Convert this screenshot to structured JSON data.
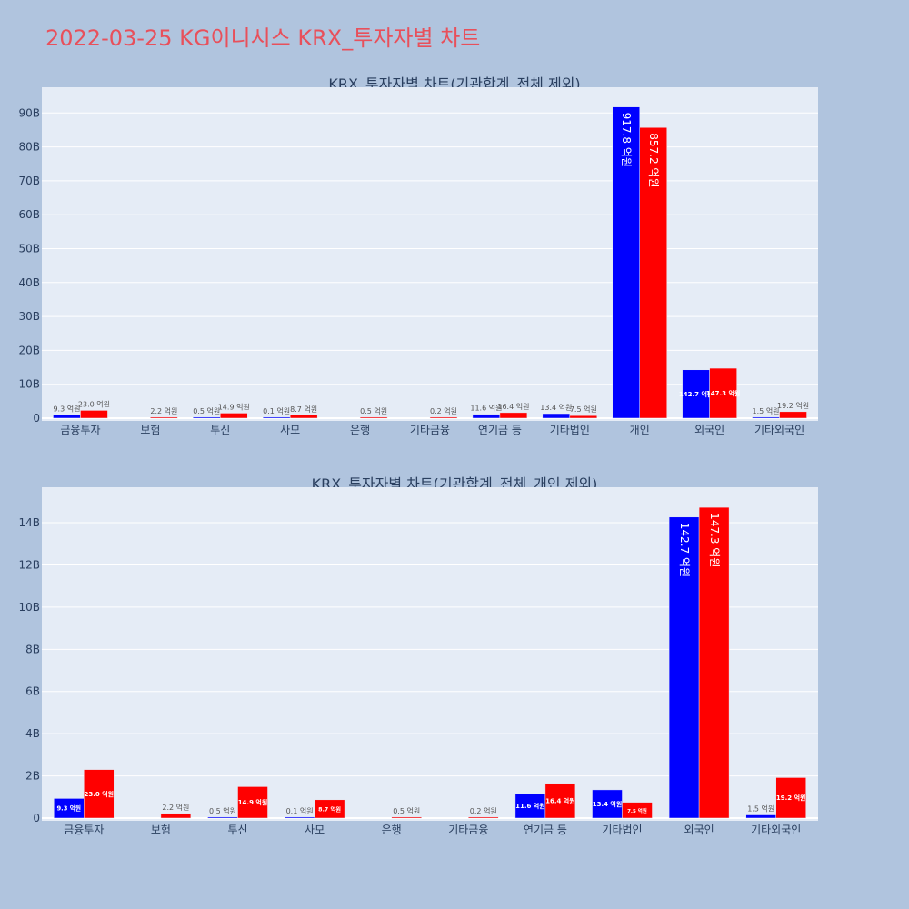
{
  "page": {
    "title": "2022-03-25 KG이니시스 KRX_투자자별 차트"
  },
  "colors": {
    "buy": "#0000ff",
    "sell": "#ff0000",
    "plot_bg": "#e5ecf6",
    "page_bg": "#b0c4de",
    "title": "#e8505b"
  },
  "chart_data": [
    {
      "type": "bar",
      "title": "KRX_투자자별 차트(기관합계_전체 제외)",
      "categories": [
        "금융투자",
        "보험",
        "투신",
        "사모",
        "은행",
        "기타금융",
        "연기금 등",
        "기타법인",
        "개인",
        "외국인",
        "기타외국인"
      ],
      "series": [
        {
          "values": [
            0.93,
            0,
            0.05,
            0.01,
            0,
            0,
            1.16,
            1.34,
            91.78,
            14.27,
            0.15
          ],
          "labels": [
            "9.3 억원",
            "",
            "0.5 억원",
            "0.1 억원",
            "",
            "",
            "11.6 억원",
            "13.4 억원",
            "917.8 억원",
            "142.7 억원",
            "1.5 억원"
          ]
        },
        {
          "values": [
            2.3,
            0.22,
            1.49,
            0.87,
            0.05,
            0.02,
            1.64,
            0.75,
            85.72,
            14.73,
            1.92
          ],
          "labels": [
            "23.0 억원",
            "2.2 억원",
            "14.9 억원",
            "8.7 억원",
            "0.5 억원",
            "0.2 억원",
            "16.4 억원",
            "7.5 억원",
            "857.2 억원",
            "147.3 억원",
            "19.2 억원"
          ]
        }
      ],
      "yticks": [
        "0",
        "10B",
        "20B",
        "30B",
        "40B",
        "50B",
        "60B",
        "70B",
        "80B",
        "90B"
      ],
      "ylim": [
        0,
        98
      ],
      "grid": true
    },
    {
      "type": "bar",
      "title": "KRX_투자자별 차트(기관합계_전체_개인 제외)",
      "categories": [
        "금융투자",
        "보험",
        "투신",
        "사모",
        "은행",
        "기타금융",
        "연기금 등",
        "기타법인",
        "외국인",
        "기타외국인"
      ],
      "series": [
        {
          "values": [
            0.93,
            0,
            0.05,
            0.01,
            0,
            0,
            1.16,
            1.34,
            14.27,
            0.15
          ],
          "labels": [
            "9.3 억원",
            "",
            "0.5 억원",
            "0.1 억원",
            "",
            "",
            "11.6 억원",
            "13.4 억원",
            "142.7 억원",
            "1.5 억원"
          ]
        },
        {
          "values": [
            2.3,
            0.22,
            1.49,
            0.87,
            0.05,
            0.02,
            1.64,
            0.75,
            14.73,
            1.92
          ],
          "labels": [
            "23.0 억원",
            "2.2 억원",
            "14.9 억원",
            "8.7 억원",
            "0.5 억원",
            "0.2 억원",
            "16.4 억원",
            "7.5 억원",
            "147.3 억원",
            "19.2 억원"
          ]
        }
      ],
      "yticks": [
        "0",
        "2B",
        "4B",
        "6B",
        "8B",
        "10B",
        "12B",
        "14B"
      ],
      "ylim": [
        0,
        15.6
      ],
      "grid": true
    }
  ]
}
